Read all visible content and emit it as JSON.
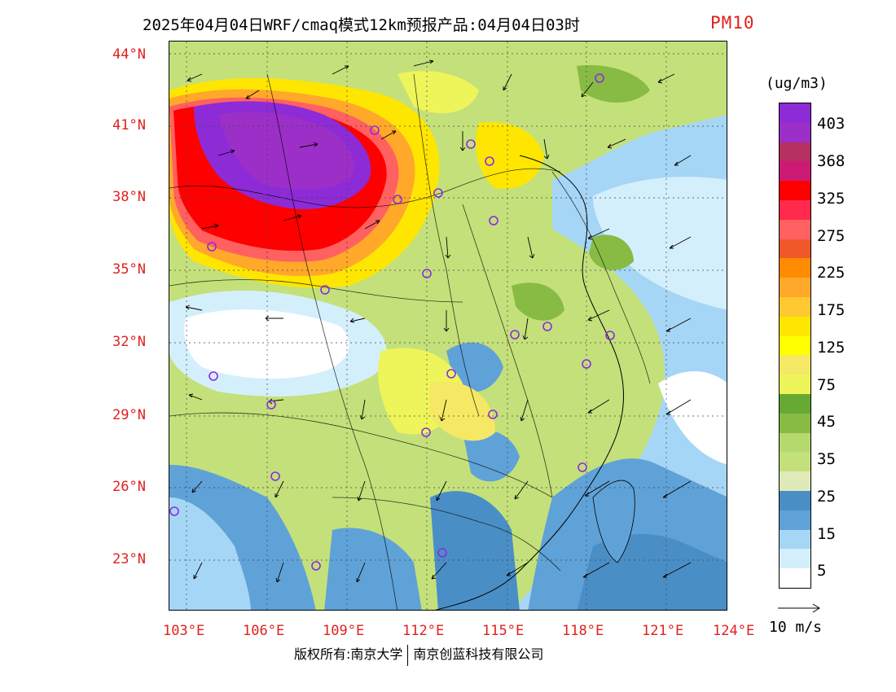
{
  "title": {
    "main": "2025年04月04日WRF/cmaq模式12km预报产品:04月04日03时",
    "species": "PM10"
  },
  "map": {
    "lat_labels": [
      "44°N",
      "41°N",
      "38°N",
      "35°N",
      "32°N",
      "29°N",
      "26°N",
      "23°N"
    ],
    "lon_labels": [
      "103°E",
      "106°E",
      "109°E",
      "112°E",
      "115°E",
      "118°E",
      "121°E",
      "124°E"
    ]
  },
  "colorbar": {
    "unit": "(ug/m3)",
    "labels": [
      "403",
      "368",
      "325",
      "275",
      "225",
      "175",
      "125",
      "75",
      "45",
      "35",
      "25",
      "15",
      "5"
    ],
    "colors": [
      "#8d2bd6",
      "#9b2fc8",
      "#b5305f",
      "#cc1a74",
      "#ff0000",
      "#ff2a4d",
      "#ff6060",
      "#f0582a",
      "#ff8c00",
      "#ffa82a",
      "#ffc830",
      "#ffe600",
      "#ffff00",
      "#f5e864",
      "#eef55a",
      "#66aa33",
      "#88bb44",
      "#b5d96e",
      "#c4e07a",
      "#dfeab8",
      "#4a8ec6",
      "#5fa2d8",
      "#a6d6f5",
      "#d4effc",
      "#ffffff"
    ]
  },
  "wind_key": {
    "label": "10 m/s"
  },
  "footer": {
    "left": "版权所有:南京大学",
    "right": "南京创蓝科技有限公司"
  }
}
